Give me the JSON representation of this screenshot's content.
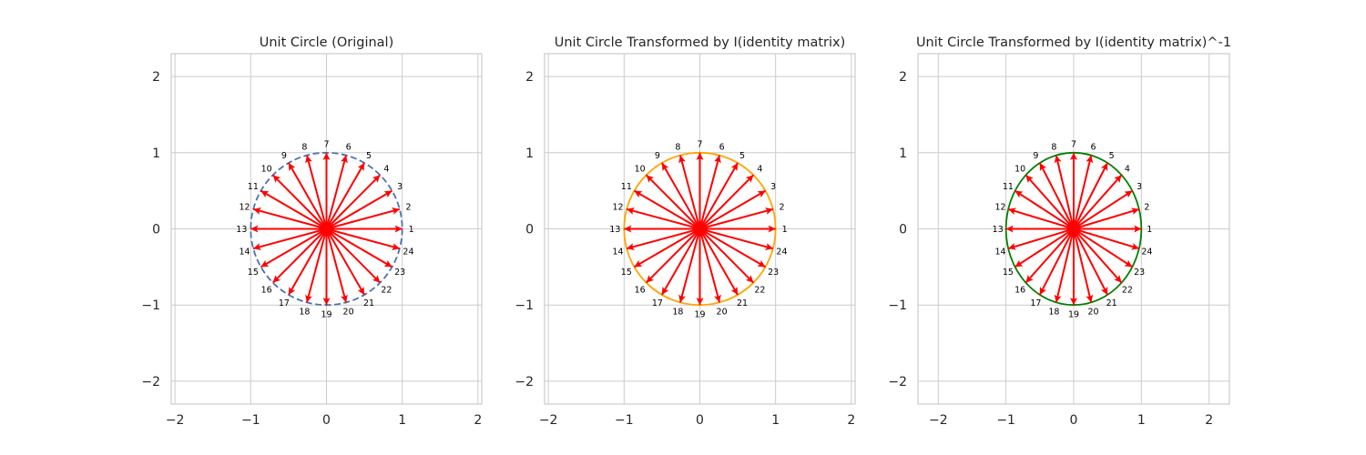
{
  "figure": {
    "background": "#ffffff",
    "grid_color": "#cccccc",
    "frame_color": "#cccccc",
    "text_color": "#262626"
  },
  "chart_data": [
    {
      "type": "vector-field",
      "title": "Unit Circle (Original)",
      "xlim": [
        -2.05,
        2.05
      ],
      "ylim": [
        -2.3,
        2.3
      ],
      "xticks": [
        -2,
        -1,
        0,
        1,
        2
      ],
      "yticks": [
        -2,
        -1,
        0,
        1,
        2
      ],
      "xtick_labels": [
        "−2",
        "−1",
        "0",
        "1",
        "2"
      ],
      "ytick_labels": [
        "−2",
        "−1",
        "0",
        "1",
        "2"
      ],
      "grid": true,
      "circle": {
        "radius": 1,
        "color": "#4c72b0",
        "style": "dashed"
      },
      "vectors": {
        "count": 24,
        "length": 1,
        "start_angle_deg": 0,
        "color": "#ff0000"
      }
    },
    {
      "type": "vector-field",
      "title": "Unit Circle Transformed by I(identity matrix)",
      "xlim": [
        -2.05,
        2.05
      ],
      "ylim": [
        -2.3,
        2.3
      ],
      "xticks": [
        -2,
        -1,
        0,
        1,
        2
      ],
      "yticks": [
        -2,
        -1,
        0,
        1,
        2
      ],
      "xtick_labels": [
        "−2",
        "−1",
        "0",
        "1",
        "2"
      ],
      "ytick_labels": [
        "−2",
        "−1",
        "0",
        "1",
        "2"
      ],
      "grid": true,
      "circle": {
        "radius": 1,
        "color": "#ffa500",
        "style": "solid"
      },
      "vectors": {
        "count": 24,
        "length": 1,
        "start_angle_deg": 0,
        "color": "#ff0000"
      }
    },
    {
      "type": "vector-field",
      "title": "Unit Circle Transformed by I(identity matrix)^-1",
      "xlim": [
        -2.3,
        2.3
      ],
      "ylim": [
        -2.3,
        2.3
      ],
      "xticks": [
        -2,
        -1,
        0,
        1,
        2
      ],
      "yticks": [
        -2,
        -1,
        0,
        1,
        2
      ],
      "xtick_labels": [
        "−2",
        "−1",
        "0",
        "1",
        "2"
      ],
      "ytick_labels": [
        "−2",
        "−1",
        "0",
        "1",
        "2"
      ],
      "grid": true,
      "circle": {
        "radius": 1,
        "color": "#008000",
        "style": "solid"
      },
      "vectors": {
        "count": 24,
        "length": 1,
        "start_angle_deg": 0,
        "color": "#ff0000"
      }
    }
  ]
}
